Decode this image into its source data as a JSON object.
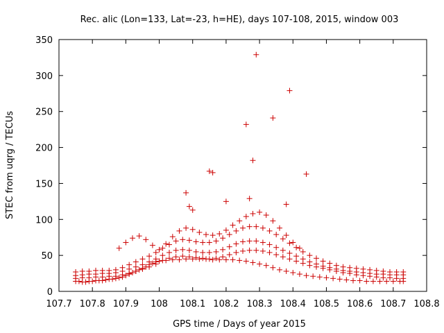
{
  "chart_data": {
    "type": "scatter",
    "title": "Rec. alic (Lon=133, Lat=-23, h=HE), days 107-108, 2015, window 003",
    "xlabel": "GPS time / Days of year 2015",
    "ylabel": "STEC from uqrg / TECUs",
    "xlim": [
      107.7,
      108.8
    ],
    "ylim": [
      0,
      350
    ],
    "xticks": [
      107.7,
      107.8,
      107.9,
      108.0,
      108.1,
      108.2,
      108.3,
      108.4,
      108.5,
      108.6,
      108.7,
      108.8
    ],
    "xtick_labels": [
      "107.7",
      "107.8",
      "107.9",
      "108",
      "108.1",
      "108.2",
      "108.3",
      "108.4",
      "108.5",
      "108.6",
      "108.7",
      "108.8"
    ],
    "yticks": [
      0,
      50,
      100,
      150,
      200,
      250,
      300,
      350
    ],
    "ytick_labels": [
      "0",
      "50",
      "100",
      "150",
      "200",
      "250",
      "300",
      "350"
    ],
    "grid": false,
    "marker": "+",
    "color": "#cc0000",
    "series": [
      {
        "x": [
          107.75,
          107.76,
          107.77,
          107.78,
          107.79,
          107.8,
          107.81,
          107.82,
          107.83,
          107.84,
          107.85,
          107.86,
          107.87,
          107.88,
          107.89,
          107.9,
          107.91,
          107.92,
          107.93,
          107.94,
          107.95,
          107.96,
          107.97,
          107.98,
          107.99,
          108.0,
          108.02,
          108.04,
          108.06,
          108.08,
          108.1,
          108.12,
          108.14,
          108.16,
          108.18,
          108.2,
          108.22,
          108.24,
          108.26,
          108.28,
          108.3,
          108.32,
          108.34,
          108.36,
          108.38,
          108.4,
          108.42,
          108.44,
          108.46,
          108.48,
          108.5,
          108.52,
          108.54,
          108.56,
          108.58,
          108.6,
          108.62,
          108.64,
          108.66,
          108.68,
          108.7,
          108.72,
          108.73
        ],
        "y": [
          14,
          14,
          13,
          13,
          14,
          14,
          15,
          15,
          15,
          16,
          17,
          17,
          18,
          19,
          20,
          22,
          24,
          26,
          28,
          30,
          32,
          34,
          37,
          39,
          41,
          42,
          43,
          44,
          44,
          45,
          45,
          45,
          45,
          44,
          44,
          44,
          44,
          43,
          42,
          40,
          38,
          36,
          33,
          30,
          28,
          26,
          24,
          22,
          21,
          20,
          19,
          18,
          17,
          16,
          15,
          15,
          14,
          14,
          14,
          14,
          14,
          14,
          14
        ]
      },
      {
        "x": [
          107.75,
          107.77,
          107.79,
          107.81,
          107.83,
          107.85,
          107.87,
          107.89,
          107.91,
          107.93,
          107.95,
          107.97,
          107.99,
          108.01,
          108.03,
          108.05,
          108.07,
          108.09,
          108.11,
          108.13,
          108.15,
          108.17,
          108.19,
          108.21,
          108.23,
          108.25,
          108.27,
          108.29,
          108.31,
          108.33,
          108.35,
          108.37,
          108.39,
          108.41,
          108.43,
          108.45,
          108.47,
          108.49,
          108.51,
          108.53,
          108.55,
          108.57,
          108.59,
          108.61,
          108.63,
          108.65,
          108.67,
          108.69,
          108.71,
          108.73
        ],
        "y": [
          18,
          19,
          19,
          20,
          20,
          21,
          21,
          23,
          25,
          28,
          31,
          34,
          38,
          43,
          46,
          48,
          49,
          48,
          47,
          46,
          45,
          46,
          48,
          51,
          54,
          56,
          57,
          57,
          56,
          54,
          51,
          48,
          45,
          42,
          39,
          36,
          34,
          32,
          30,
          28,
          26,
          25,
          23,
          22,
          21,
          20,
          19,
          19,
          18,
          18
        ]
      },
      {
        "x": [
          107.75,
          107.77,
          107.79,
          107.81,
          107.83,
          107.85,
          107.87,
          107.89,
          107.91,
          107.93,
          107.95,
          107.97,
          107.99,
          108.01,
          108.03,
          108.05,
          108.07,
          108.09,
          108.11,
          108.13,
          108.15,
          108.17,
          108.19,
          108.21,
          108.23,
          108.25,
          108.27,
          108.29,
          108.31,
          108.33,
          108.35,
          108.37,
          108.39,
          108.41,
          108.43,
          108.45,
          108.47,
          108.49,
          108.51,
          108.53,
          108.55,
          108.57,
          108.59,
          108.61,
          108.63,
          108.65,
          108.67,
          108.69,
          108.71,
          108.73
        ],
        "y": [
          22,
          23,
          24,
          24,
          25,
          25,
          26,
          28,
          31,
          34,
          37,
          41,
          45,
          50,
          54,
          57,
          58,
          57,
          55,
          54,
          54,
          55,
          58,
          62,
          66,
          69,
          70,
          70,
          68,
          65,
          61,
          57,
          53,
          49,
          45,
          41,
          38,
          35,
          33,
          31,
          29,
          28,
          27,
          26,
          25,
          24,
          24,
          23,
          23,
          23
        ]
      },
      {
        "x": [
          107.75,
          107.77,
          107.79,
          107.81,
          107.83,
          107.85,
          107.87,
          107.89,
          107.91,
          107.93,
          107.95,
          107.97,
          107.99,
          108.01,
          108.03,
          108.05,
          108.07,
          108.09,
          108.11,
          108.13,
          108.15,
          108.17,
          108.19,
          108.21,
          108.23,
          108.25,
          108.27,
          108.29,
          108.31,
          108.33,
          108.35,
          108.37,
          108.39,
          108.41,
          108.43,
          108.45,
          108.47,
          108.49,
          108.51,
          108.53,
          108.55,
          108.57,
          108.59,
          108.61,
          108.63,
          108.65,
          108.67,
          108.69,
          108.71,
          108.73
        ],
        "y": [
          27,
          28,
          28,
          29,
          29,
          29,
          30,
          33,
          37,
          41,
          45,
          49,
          54,
          60,
          65,
          70,
          72,
          71,
          69,
          68,
          68,
          70,
          74,
          79,
          84,
          88,
          90,
          90,
          88,
          84,
          79,
          73,
          67,
          61,
          55,
          50,
          46,
          42,
          39,
          36,
          34,
          33,
          32,
          31,
          30,
          29,
          28,
          27,
          27,
          27
        ]
      },
      {
        "x": [
          107.88,
          107.9,
          107.92,
          107.94,
          107.96,
          107.98,
          108.0,
          108.02,
          108.04,
          108.06,
          108.08,
          108.1,
          108.12,
          108.14,
          108.16,
          108.18,
          108.2,
          108.22,
          108.24,
          108.26,
          108.28,
          108.3,
          108.32,
          108.34,
          108.36,
          108.38,
          108.4,
          108.42
        ],
        "y": [
          60,
          68,
          74,
          77,
          72,
          64,
          58,
          66,
          76,
          84,
          88,
          86,
          82,
          79,
          78,
          80,
          85,
          92,
          98,
          104,
          108,
          110,
          106,
          98,
          88,
          78,
          68,
          60
        ]
      },
      {
        "x": [
          108.08,
          108.09,
          108.1,
          108.15,
          108.16,
          108.2,
          108.26,
          108.27,
          108.28,
          108.29,
          108.34,
          108.38,
          108.39,
          108.44
        ],
        "y": [
          137,
          118,
          113,
          167,
          165,
          125,
          232,
          129,
          182,
          329,
          241,
          121,
          279,
          163
        ]
      }
    ]
  }
}
